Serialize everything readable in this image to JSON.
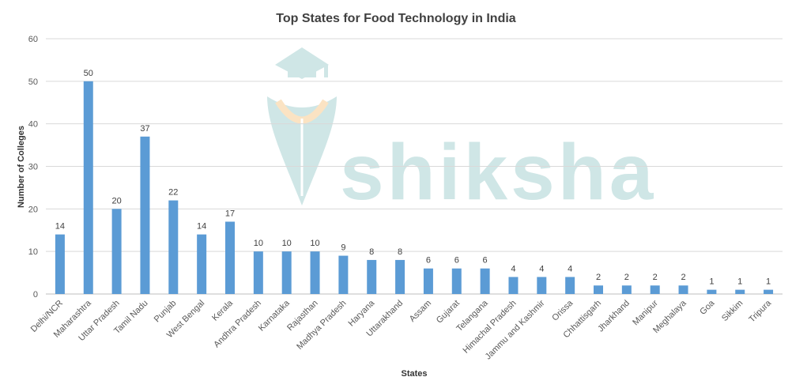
{
  "chart_data": {
    "type": "bar",
    "title": "Top States for Food Technology in India",
    "xlabel": "States",
    "ylabel": "Number of Colleges",
    "ylim": [
      0,
      60
    ],
    "yticks": [
      0,
      10,
      20,
      30,
      40,
      50,
      60
    ],
    "grid": true,
    "legend": "none",
    "bar_color": "#5b9bd5",
    "categories": [
      "Delhi/NCR",
      "Maharashtra",
      "Uttar Pradesh",
      "Tamil Nadu",
      "Punjab",
      "West Bengal",
      "Kerala",
      "Andhra Pradesh",
      "Karnataka",
      "Rajasthan",
      "Madhya Pradesh",
      "Haryana",
      "Uttarakhand",
      "Assam",
      "Gujarat",
      "Telangana",
      "Himachal Pradesh",
      "Jammu and Kashmir",
      "Orissa",
      "Chhattisgarh",
      "Jharkhand",
      "Manipur",
      "Meghalaya",
      "Goa",
      "Sikkim",
      "Tripura"
    ],
    "values": [
      14,
      50,
      20,
      37,
      22,
      14,
      17,
      10,
      10,
      10,
      9,
      8,
      8,
      6,
      6,
      6,
      4,
      4,
      4,
      2,
      2,
      2,
      2,
      1,
      1,
      1
    ]
  },
  "watermark": {
    "text": "shiksha",
    "icon": "graduation-cap-shield-icon",
    "color": "#cfe6e6",
    "accent": "#fbe3c3"
  }
}
